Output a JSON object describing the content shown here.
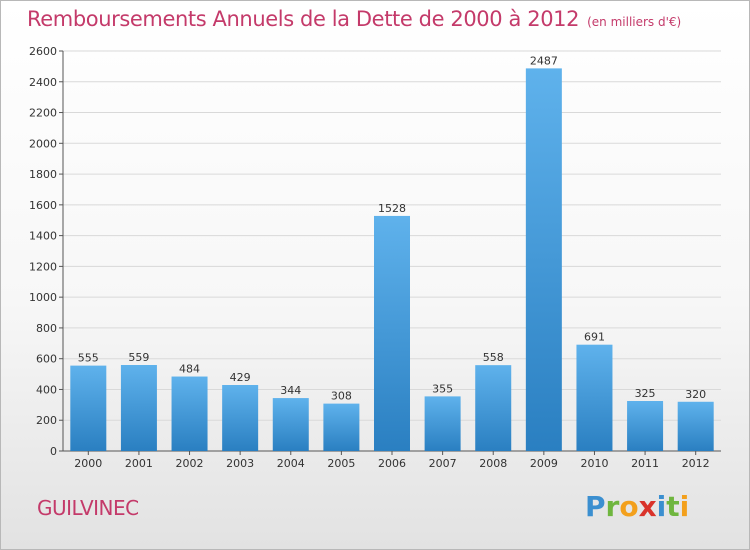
{
  "title": "Remboursements Annuels de la Dette de 2000 à 2012",
  "subtitle": "(en milliers d'€)",
  "city": "GUILVINEC",
  "logo": {
    "text": "Proxiti",
    "letters": [
      {
        "ch": "P",
        "color": "#3b8fd0"
      },
      {
        "ch": "r",
        "color": "#6fb63f"
      },
      {
        "ch": "o",
        "color": "#f3a01c"
      },
      {
        "ch": "x",
        "color": "#d9332b"
      },
      {
        "ch": "i",
        "color": "#3b8fd0"
      },
      {
        "ch": "t",
        "color": "#6fb63f"
      },
      {
        "ch": "i",
        "color": "#f3a01c"
      }
    ]
  },
  "colors": {
    "bar_light": "#5fb2ec",
    "bar_dark": "#2a7fc1",
    "grid": "#d9d9d9",
    "title": "#c43a6a"
  },
  "chart_data": {
    "type": "bar",
    "categories": [
      "2000",
      "2001",
      "2002",
      "2003",
      "2004",
      "2005",
      "2006",
      "2007",
      "2008",
      "2009",
      "2010",
      "2011",
      "2012"
    ],
    "values": [
      555,
      559,
      484,
      429,
      344,
      308,
      1528,
      355,
      558,
      2487,
      691,
      325,
      320
    ],
    "ylim": [
      0,
      2600
    ],
    "yticks": [
      0,
      200,
      400,
      600,
      800,
      1000,
      1200,
      1400,
      1600,
      1800,
      2000,
      2200,
      2400,
      2600
    ],
    "grid": true,
    "xlabel": "",
    "ylabel": ""
  }
}
